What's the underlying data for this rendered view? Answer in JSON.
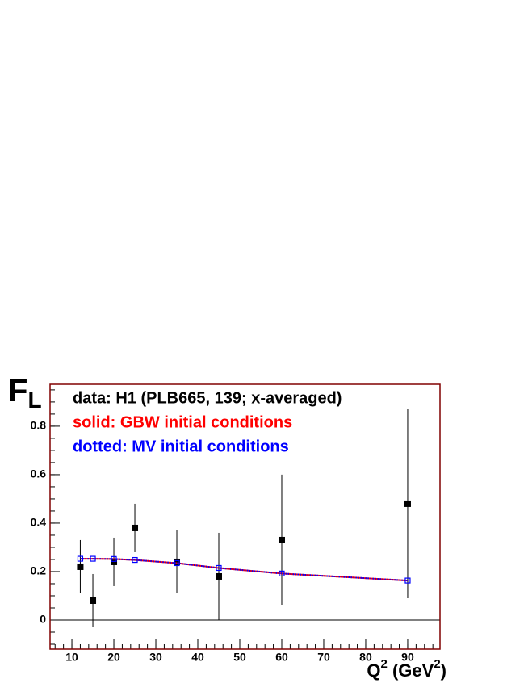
{
  "chart_data": {
    "type": "scatter",
    "y_label": "F",
    "y_label_sub": "L",
    "x_label_parts": [
      "Q",
      "2",
      " (GeV",
      "2",
      ")"
    ],
    "annotations": [
      {
        "text": "data: H1 (PLB665, 139; x-averaged)",
        "color": "#000000"
      },
      {
        "text": "solid: GBW initial conditions",
        "color": "#ff0000"
      },
      {
        "text": "dotted: MV initial conditions",
        "color": "#0000ff"
      }
    ],
    "x": [
      12,
      15,
      20,
      25,
      35,
      45,
      60,
      90
    ],
    "series": [
      {
        "style": "markers",
        "color": "#000000",
        "values": [
          0.22,
          0.08,
          0.24,
          0.38,
          0.24,
          0.18,
          0.33,
          0.48
        ],
        "errors": [
          0.11,
          0.11,
          0.1,
          0.1,
          0.13,
          0.18,
          0.27,
          0.39
        ]
      },
      {
        "style": "solid",
        "color": "#ff0000",
        "values": [
          0.253,
          0.253,
          0.252,
          0.248,
          0.235,
          0.215,
          0.192,
          0.163
        ]
      },
      {
        "style": "dotted-markers",
        "color": "#0000ff",
        "values": [
          0.253,
          0.253,
          0.252,
          0.248,
          0.235,
          0.215,
          0.192,
          0.163
        ]
      }
    ],
    "xlim": [
      4.8,
      97.7
    ],
    "xticks": [
      10,
      20,
      30,
      40,
      50,
      60,
      70,
      80,
      90
    ],
    "ylim": [
      -0.12,
      0.973
    ],
    "yticks": [
      0,
      0.2,
      0.4,
      0.6,
      0.8
    ],
    "frame_color": "#800000"
  }
}
